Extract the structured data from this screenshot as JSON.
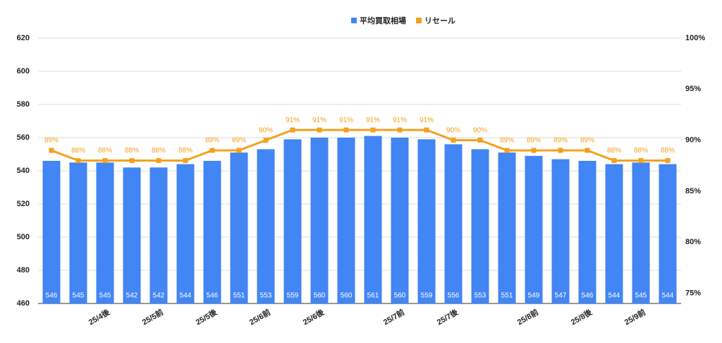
{
  "chart_data": {
    "type": "bar_line",
    "categories": [
      null,
      null,
      "25/4後",
      null,
      "25/5前",
      null,
      "25/5後",
      null,
      "25/6前",
      null,
      "25/6後",
      null,
      null,
      "25/7前",
      null,
      "25/7後",
      null,
      null,
      "25/8前",
      null,
      "25/8後",
      null,
      "25/9前",
      null
    ],
    "series": [
      {
        "name": "平均買取相場",
        "color": "#4285f4",
        "type": "bar",
        "values": [
          546,
          545,
          545,
          542,
          542,
          544,
          546,
          551,
          553,
          559,
          560,
          560,
          561,
          560,
          559,
          556,
          553,
          551,
          549,
          547,
          546,
          544,
          545,
          544
        ]
      },
      {
        "name": "リセール",
        "color": "#f4a11e",
        "type": "line",
        "axis": "y2",
        "values": [
          89,
          88,
          88,
          88,
          88,
          88,
          89,
          89,
          90,
          91,
          91,
          91,
          91,
          91,
          91,
          90,
          90,
          89,
          89,
          89,
          89,
          88,
          88,
          88
        ],
        "value_labels": [
          "89%",
          "88%",
          "88%",
          "88%",
          "88%",
          "88%",
          "89%",
          "89%",
          "90%",
          "91%",
          "91%",
          "91%",
          "91%",
          "91%",
          "91%",
          "90%",
          "90%",
          "89%",
          "89%",
          "89%",
          "89%",
          "88%",
          "88%",
          "88%"
        ]
      }
    ],
    "ylim": [
      460,
      620
    ],
    "yticks": [
      460,
      480,
      500,
      520,
      540,
      560,
      580,
      600,
      620
    ],
    "y2lim": [
      74,
      100
    ],
    "y2ticks": [
      {
        "value": 75,
        "label": "75%"
      },
      {
        "value": 80,
        "label": "80%"
      },
      {
        "value": 85,
        "label": "85%"
      },
      {
        "value": 90,
        "label": "90%"
      },
      {
        "value": 95,
        "label": "95%"
      },
      {
        "value": 100,
        "label": "100%"
      }
    ],
    "grid": true,
    "legend": "top"
  }
}
